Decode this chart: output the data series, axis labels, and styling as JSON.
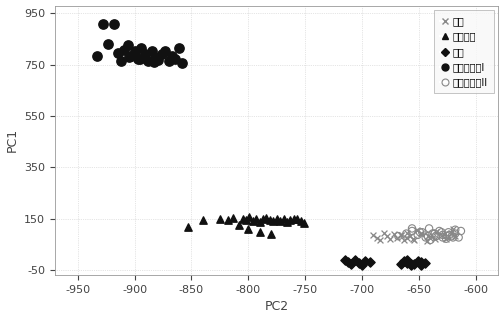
{
  "title": "",
  "xlabel": "PC2",
  "ylabel": "PC1",
  "xlim": [
    -970,
    -580
  ],
  "ylim": [
    -70,
    980
  ],
  "xticks": [
    -950,
    -900,
    -850,
    -800,
    -750,
    -700,
    -650,
    -600
  ],
  "yticks": [
    -50,
    150,
    350,
    550,
    750,
    950
  ],
  "series": {
    "zhonghua": {
      "marker": "x",
      "color": "#888888",
      "size": 18,
      "linewidths": 0.9,
      "x": [
        -618,
        -622,
        -626,
        -630,
        -635,
        -640,
        -643,
        -648,
        -652,
        -655,
        -658,
        -660,
        -663,
        -666,
        -669,
        -672,
        -675,
        -678,
        -681,
        -684,
        -687,
        -690,
        -620,
        -628,
        -636,
        -642,
        -648,
        -654,
        -660,
        -666
      ],
      "y": [
        82,
        96,
        72,
        87,
        100,
        76,
        62,
        91,
        104,
        72,
        82,
        96,
        67,
        86,
        76,
        91,
        72,
        82,
        96,
        67,
        76,
        86,
        108,
        90,
        72,
        82,
        96,
        67,
        76,
        86
      ]
    },
    "longfeng": {
      "marker": "^",
      "color": "#111111",
      "size": 28,
      "x": [
        -853,
        -840,
        -825,
        -818,
        -813,
        -808,
        -805,
        -802,
        -799,
        -796,
        -793,
        -790,
        -787,
        -784,
        -781,
        -778,
        -775,
        -772,
        -769,
        -766,
        -763,
        -760,
        -757,
        -754,
        -751,
        -780,
        -790,
        -800
      ],
      "y": [
        118,
        145,
        148,
        143,
        153,
        127,
        150,
        144,
        157,
        140,
        147,
        137,
        150,
        154,
        144,
        140,
        147,
        142,
        150,
        137,
        144,
        150,
        147,
        140,
        132,
        90,
        100,
        108
      ]
    },
    "jiaozi": {
      "marker": "D",
      "color": "#111111",
      "size": 22,
      "x": [
        -693,
        -697,
        -700,
        -703,
        -706,
        -710,
        -712,
        -715,
        -657,
        -660,
        -663,
        -666,
        -648,
        -651,
        -654,
        -657,
        -660,
        -645,
        -648
      ],
      "y": [
        -20,
        -15,
        -30,
        -22,
        -12,
        -28,
        -18,
        -12,
        -28,
        -22,
        -15,
        -28,
        -20,
        -15,
        -25,
        -32,
        -10,
        -22,
        -30
      ]
    },
    "daijianbieI": {
      "marker": "o",
      "color": "#111111",
      "size": 45,
      "x": [
        -933,
        -928,
        -923,
        -918,
        -915,
        -912,
        -909,
        -906,
        -903,
        -900,
        -897,
        -894,
        -891,
        -888,
        -885,
        -882,
        -879,
        -876,
        -873,
        -870,
        -867,
        -864,
        -861,
        -858,
        -883,
        -895,
        -905
      ],
      "y": [
        785,
        910,
        830,
        910,
        795,
        765,
        805,
        825,
        783,
        803,
        773,
        813,
        793,
        763,
        803,
        778,
        768,
        793,
        803,
        763,
        783,
        773,
        813,
        758,
        760,
        770,
        780
      ]
    },
    "daijianbieII": {
      "marker": "o",
      "color": "none",
      "edgecolor": "#888888",
      "size": 28,
      "linewidths": 0.8,
      "x": [
        -668,
        -661,
        -656,
        -651,
        -647,
        -644,
        -641,
        -638,
        -635,
        -632,
        -629,
        -626,
        -624,
        -621,
        -618,
        -615,
        -613,
        -656,
        -649,
        -642,
        -636,
        -629,
        -623,
        -618,
        -640,
        -635,
        -630,
        -625,
        -620
      ],
      "y": [
        82,
        92,
        102,
        87,
        97,
        77,
        112,
        92,
        82,
        102,
        87,
        72,
        97,
        82,
        92,
        77,
        102,
        112,
        97,
        82,
        92,
        77,
        87,
        107,
        67,
        82,
        97,
        82,
        77
      ]
    }
  },
  "background_color": "#ffffff",
  "font_color": "#444444",
  "font_size": 8,
  "grid_color": "#cccccc",
  "grid_style": "dotted"
}
